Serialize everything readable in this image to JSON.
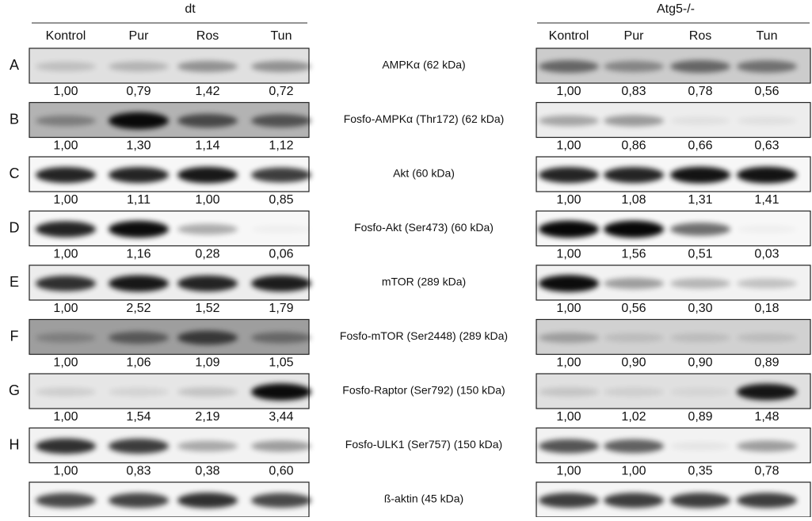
{
  "groups": [
    {
      "title": "dt",
      "lanes": [
        "Kontrol",
        "Pur",
        "Ros",
        "Tun"
      ]
    },
    {
      "title": "Atg5-/-",
      "lanes": [
        "Kontrol",
        "Pur",
        "Ros",
        "Tun"
      ]
    }
  ],
  "rows": [
    {
      "letter": "A",
      "label": "AMPKα (62 kDa)",
      "dt": [
        "1,00",
        "0,79",
        "1,42",
        "0,72"
      ],
      "atg5": [
        "1,00",
        "0,83",
        "0,78",
        "0,56"
      ]
    },
    {
      "letter": "B",
      "label": "Fosfo-AMPKα (Thr172) (62 kDa)",
      "dt": [
        "1,00",
        "1,30",
        "1,14",
        "1,12"
      ],
      "atg5": [
        "1,00",
        "0,86",
        "0,66",
        "0,63"
      ]
    },
    {
      "letter": "C",
      "label": "Akt (60 kDa)",
      "dt": [
        "1,00",
        "1,11",
        "1,00",
        "0,85"
      ],
      "atg5": [
        "1,00",
        "1,08",
        "1,31",
        "1,41"
      ]
    },
    {
      "letter": "D",
      "label": "Fosfo-Akt (Ser473) (60 kDa)",
      "dt": [
        "1,00",
        "1,16",
        "0,28",
        "0,06"
      ],
      "atg5": [
        "1,00",
        "1,56",
        "0,51",
        "0,03"
      ]
    },
    {
      "letter": "E",
      "label": "mTOR (289 kDa)",
      "dt": [
        "1,00",
        "2,52",
        "1,52",
        "1,79"
      ],
      "atg5": [
        "1,00",
        "0,56",
        "0,30",
        "0,18"
      ]
    },
    {
      "letter": "F",
      "label": "Fosfo-mTOR (Ser2448) (289 kDa)",
      "dt": [
        "1,00",
        "1,06",
        "1,09",
        "1,05"
      ],
      "atg5": [
        "1,00",
        "0,90",
        "0,90",
        "0,89"
      ]
    },
    {
      "letter": "G",
      "label": "Fosfo-Raptor (Ser792) (150 kDa)",
      "dt": [
        "1,00",
        "1,54",
        "2,19",
        "3,44"
      ],
      "atg5": [
        "1,00",
        "1,02",
        "0,89",
        "1,48"
      ]
    },
    {
      "letter": "H",
      "label": "Fosfo-ULK1 (Ser757) (150 kDa)",
      "dt": [
        "1,00",
        "0,83",
        "0,38",
        "0,60"
      ],
      "atg5": [
        "1,00",
        "1,00",
        "0,35",
        "0,78"
      ]
    }
  ],
  "loading_control": {
    "label": "ß-aktin (45 kDa)"
  }
}
